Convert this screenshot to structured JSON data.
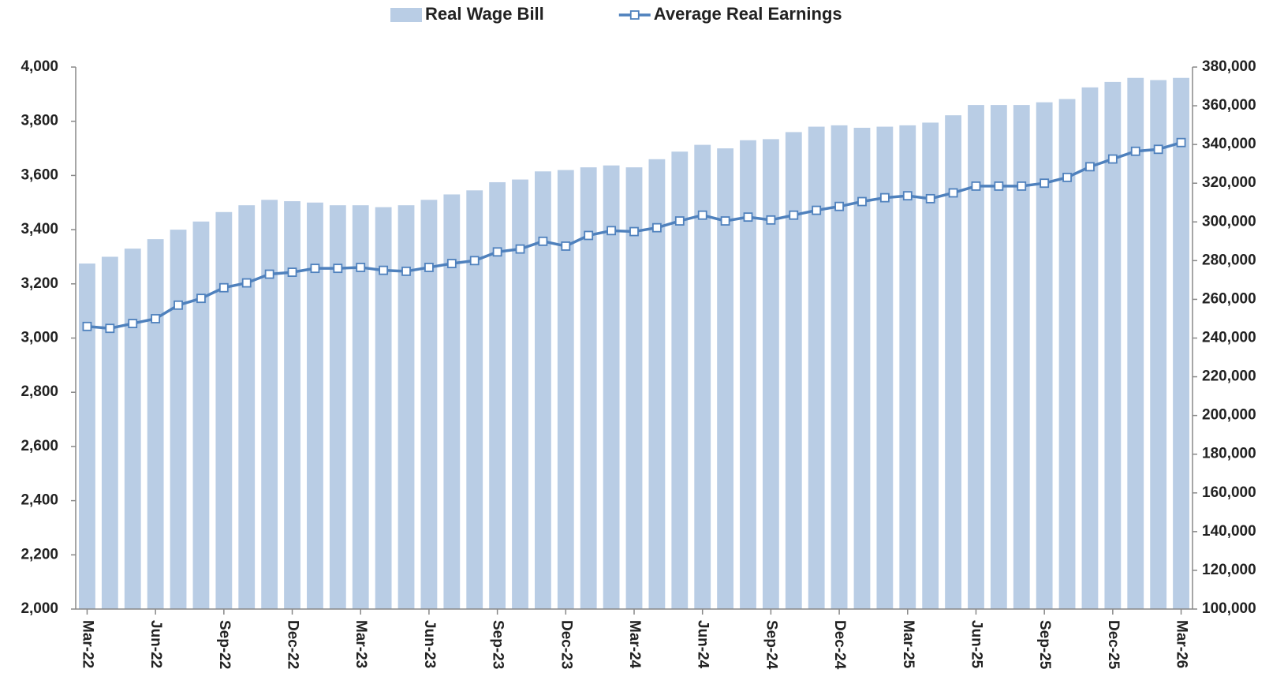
{
  "chart_data": {
    "type": "bar-line",
    "categories": [
      "Mar-22",
      null,
      null,
      "Jun-22",
      null,
      null,
      "Sep-22",
      null,
      null,
      "Dec-22",
      null,
      null,
      "Mar-23",
      null,
      null,
      "Jun-23",
      null,
      null,
      "Sep-23",
      null,
      null,
      "Dec-23",
      null,
      null,
      "Mar-24",
      null,
      null,
      "Jun-24",
      null,
      null,
      "Sep-24",
      null,
      null,
      "Dec-24",
      null,
      null,
      "Mar-25",
      null,
      null,
      "Jun-25",
      null,
      null,
      "Sep-25",
      null,
      null,
      "Dec-25",
      null,
      null,
      "Mar-26"
    ],
    "series": [
      {
        "name": "Real Wage Bill",
        "type": "bar",
        "color": "#b9cde5",
        "values": [
          3275,
          3300,
          3330,
          3365,
          3400,
          3430,
          3465,
          3490,
          3510,
          3505,
          3500,
          3490,
          3490,
          3483,
          3490,
          3510,
          3530,
          3545,
          3575,
          3585,
          3615,
          3620,
          3630,
          3637,
          3630,
          3660,
          3688,
          3713,
          3700,
          3730,
          3734,
          3760,
          3780,
          3785,
          3776,
          3780,
          3785,
          3795,
          3822,
          3860,
          3860,
          3860,
          3870,
          3882,
          3925,
          3945,
          3960,
          3952,
          3960
        ]
      },
      {
        "name": "Average Real Earnings",
        "type": "line",
        "axis": "y2",
        "color": "#4f81bd",
        "values": [
          246000,
          245000,
          247500,
          250000,
          257000,
          260500,
          266000,
          268500,
          273000,
          274000,
          276000,
          276000,
          276500,
          275000,
          274500,
          276500,
          278500,
          280000,
          284500,
          286000,
          290000,
          287500,
          293000,
          295500,
          295000,
          297000,
          300500,
          303500,
          300500,
          302500,
          301000,
          303500,
          306000,
          308000,
          310500,
          312500,
          313500,
          312000,
          315000,
          318500,
          318500,
          318500,
          320000,
          323000,
          328500,
          332500,
          336500,
          337500,
          341000
        ]
      }
    ],
    "ylim": [
      2000,
      4000
    ],
    "yticks": [
      {
        "value": 2000,
        "label": "2,000"
      },
      {
        "value": 2200,
        "label": "2,200"
      },
      {
        "value": 2400,
        "label": "2,400"
      },
      {
        "value": 2600,
        "label": "2,600"
      },
      {
        "value": 2800,
        "label": "2,800"
      },
      {
        "value": 3000,
        "label": "3,000"
      },
      {
        "value": 3200,
        "label": "3,200"
      },
      {
        "value": 3400,
        "label": "3,400"
      },
      {
        "value": 3600,
        "label": "3,600"
      },
      {
        "value": 3800,
        "label": "3,800"
      },
      {
        "value": 4000,
        "label": "4,000"
      }
    ],
    "y2lim": [
      100000,
      380000
    ],
    "y2ticks": [
      {
        "value": 100000,
        "label": "100,000"
      },
      {
        "value": 120000,
        "label": "120,000"
      },
      {
        "value": 140000,
        "label": "140,000"
      },
      {
        "value": 160000,
        "label": "160,000"
      },
      {
        "value": 180000,
        "label": "180,000"
      },
      {
        "value": 200000,
        "label": "200,000"
      },
      {
        "value": 220000,
        "label": "220,000"
      },
      {
        "value": 240000,
        "label": "240,000"
      },
      {
        "value": 260000,
        "label": "260,000"
      },
      {
        "value": 280000,
        "label": "280,000"
      },
      {
        "value": 300000,
        "label": "300,000"
      },
      {
        "value": 320000,
        "label": "320,000"
      },
      {
        "value": 340000,
        "label": "340,000"
      },
      {
        "value": 360000,
        "label": "360,000"
      },
      {
        "value": 380000,
        "label": "380,000"
      }
    ],
    "legend": "top",
    "grid": false
  }
}
